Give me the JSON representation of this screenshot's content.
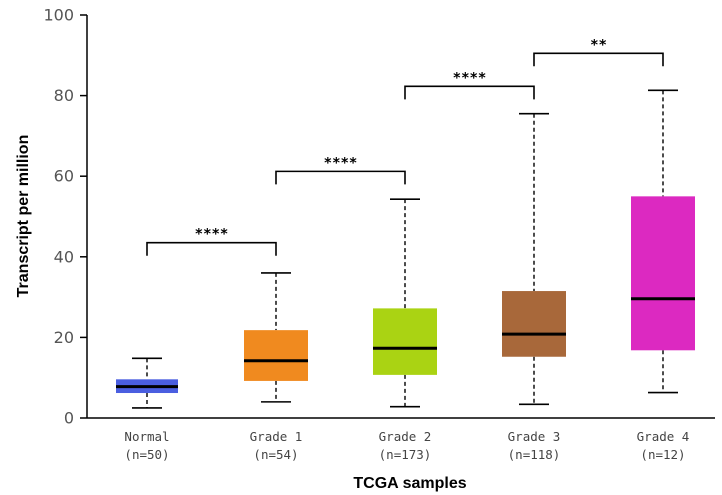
{
  "chart_data": {
    "type": "box",
    "xlabel": "TCGA samples",
    "ylabel": "Transcript per million",
    "ylim": [
      0,
      100
    ],
    "yticks": [
      "0",
      "20",
      "40",
      "60",
      "80",
      "100"
    ],
    "categories": [
      {
        "name": "Normal",
        "n_label": "(n=50)",
        "color": "#4a5ee0",
        "whisker_low": 2.5,
        "q1": 6.2,
        "median": 7.8,
        "q3": 9.6,
        "whisker_high": 14.8
      },
      {
        "name": "Grade 1",
        "n_label": "(n=54)",
        "color": "#f08a1f",
        "whisker_low": 4.0,
        "q1": 9.2,
        "median": 14.2,
        "q3": 21.8,
        "whisker_high": 36.0
      },
      {
        "name": "Grade 2",
        "n_label": "(n=173)",
        "color": "#aad313",
        "whisker_low": 2.8,
        "q1": 10.7,
        "median": 17.3,
        "q3": 27.2,
        "whisker_high": 54.3
      },
      {
        "name": "Grade 3",
        "n_label": "(n=118)",
        "color": "#a8683a",
        "whisker_low": 3.4,
        "q1": 15.2,
        "median": 20.8,
        "q3": 31.5,
        "whisker_high": 75.5
      },
      {
        "name": "Grade 4",
        "n_label": "(n=12)",
        "color": "#dc29c1",
        "whisker_low": 6.3,
        "q1": 16.8,
        "median": 29.6,
        "q3": 55.0,
        "whisker_high": 81.3
      }
    ],
    "significance": [
      {
        "from": 0,
        "to": 1,
        "level": 43.5,
        "label": "****"
      },
      {
        "from": 1,
        "to": 2,
        "level": 61.2,
        "label": "****"
      },
      {
        "from": 2,
        "to": 3,
        "level": 82.3,
        "label": "****"
      },
      {
        "from": 3,
        "to": 4,
        "level": 90.5,
        "label": "**"
      }
    ],
    "grid": false
  }
}
